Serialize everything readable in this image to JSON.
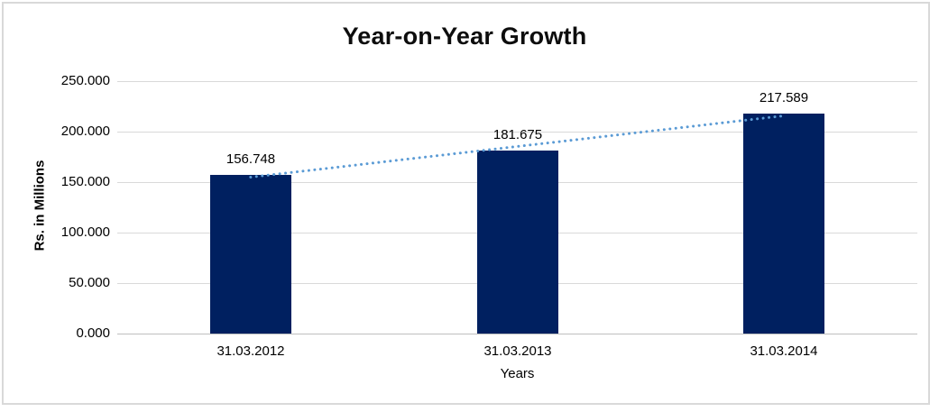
{
  "chart_data": {
    "type": "bar",
    "title": "Year-on-Year Growth",
    "xlabel": "Years",
    "ylabel": "Rs. in Millions",
    "categories": [
      "31.03.2012",
      "31.03.2013",
      "31.03.2014"
    ],
    "values": [
      156.748,
      181.675,
      217.589
    ],
    "value_labels": [
      "156.748",
      "181.675",
      "217.589"
    ],
    "ylim": [
      0,
      250
    ],
    "ytick_step": 50,
    "ytick_labels": [
      "0.000",
      "50.000",
      "100.000",
      "150.000",
      "200.000",
      "250.000"
    ],
    "grid": true,
    "legend": "none",
    "trendline": {
      "type": "linear",
      "style": "dotted"
    },
    "colors": {
      "bar": "#002060",
      "trendline": "#5B9BD5",
      "gridline": "#D9D9D9",
      "axis_line": "#BFBFBF",
      "frame_border": "#D9D9D9",
      "text": "#000000"
    }
  }
}
